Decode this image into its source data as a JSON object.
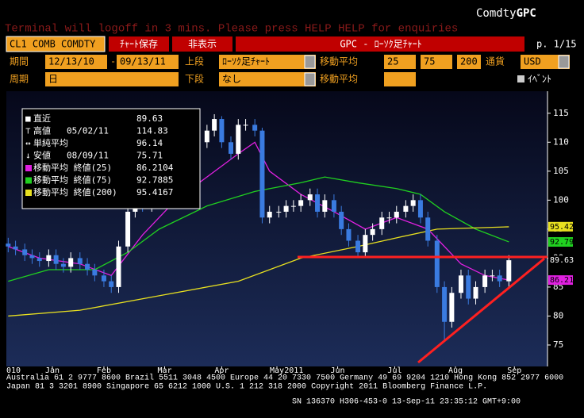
{
  "header": {
    "notice": "Terminal will logoff in 3 mins. Please press HELP HELP for enquiries",
    "brand": "Comdty",
    "ticker": "GPC"
  },
  "toolbar": {
    "security": "CL1 COMB COMDTY",
    "save": "ﾁｬｰﾄ保存",
    "hide": "非表示",
    "title": "GPC - ﾛｰｿｸ足ﾁｬｰﾄ",
    "page": "p. 1/15"
  },
  "form": {
    "period_label": "期間",
    "start": "12/13/10",
    "dash": "-",
    "end": "09/13/11",
    "upper_label": "上段",
    "upper": "ﾛｰｿｸ足ﾁｬｰﾄ",
    "ma_label": "移動平均",
    "ma1": "25",
    "ma2": "75",
    "ma3": "200",
    "currency_label": "通貨",
    "currency": "USD",
    "cycle_label": "周期",
    "cycle": "日",
    "lower_label": "下段",
    "lower": "なし",
    "ma_label2": "移動平均",
    "event": "ｲﾍﾞﾝﾄ"
  },
  "footer": {
    "line1": "Australia 61 2 9777 8600 Brazil 5511 3048 4500 Europe 44 20 7330 7500 Germany 49 69 9204 1210 Hong Kong 852 2977 6000",
    "line2": "Japan 81 3 3201 8900    Singapore 65 6212 1000    U.S. 1 212 318 2000      Copyright 2011 Bloomberg Finance L.P.",
    "line3": "SN 136370 H306-453-0 13-Sep-11 23:35:12 GMT+9:00"
  },
  "chart_data": {
    "type": "candlestick",
    "x": [
      0,
      4,
      9,
      13,
      17,
      22,
      26,
      30,
      34,
      39,
      43,
      47,
      52,
      56,
      60,
      65,
      69,
      73,
      78,
      82,
      86,
      91,
      95,
      99,
      103,
      108,
      112,
      116,
      121,
      125,
      129,
      134,
      138,
      142,
      147,
      151,
      155,
      159,
      164,
      168,
      172,
      177,
      181,
      185,
      190,
      194,
      198,
      203,
      207,
      211,
      216,
      220,
      224,
      228,
      233,
      237,
      241,
      246,
      250,
      254,
      259,
      263,
      267,
      272
    ],
    "open": [
      92.5,
      92,
      91.5,
      90.5,
      90,
      89.5,
      90.5,
      89,
      88.5,
      90,
      89,
      88,
      87,
      86,
      85,
      92,
      98,
      100,
      99,
      102,
      104,
      100,
      107,
      108,
      106,
      110,
      112,
      114,
      110,
      108,
      113,
      113,
      112,
      97,
      98,
      98,
      99,
      99,
      100,
      101,
      98,
      100,
      98,
      95,
      93,
      91,
      94,
      95,
      97,
      97,
      98,
      99,
      100,
      97,
      93,
      85,
      79,
      84,
      87,
      83,
      85,
      87,
      87,
      86
    ],
    "high": [
      93.5,
      93,
      92.5,
      91.5,
      91,
      91.5,
      91.5,
      90,
      91,
      91,
      90,
      89,
      88,
      87,
      93,
      99,
      101,
      101,
      103,
      105,
      105,
      108,
      109,
      109,
      111,
      113,
      114.83,
      114.5,
      111,
      114,
      114,
      114,
      112.5,
      99,
      99,
      100,
      100,
      101,
      102,
      102,
      101,
      101,
      99,
      96,
      94,
      95,
      96,
      98,
      98,
      99,
      100,
      101,
      101,
      98,
      94,
      86,
      85,
      88,
      88,
      86,
      88,
      88,
      88,
      90.5
    ],
    "low": [
      91,
      90.5,
      89.5,
      89,
      88.5,
      88.5,
      88,
      87.5,
      87.5,
      88,
      87,
      86,
      85,
      84,
      84,
      91,
      97,
      98,
      98,
      101,
      99,
      99,
      106,
      105,
      105,
      109,
      111,
      109,
      107,
      107,
      112,
      111,
      96,
      96,
      97,
      97,
      98,
      98,
      99,
      97,
      97,
      97,
      94,
      92,
      90,
      90,
      93,
      94,
      96,
      96,
      97,
      98,
      96,
      92,
      84,
      75.71,
      78,
      83,
      82,
      82,
      84,
      86,
      85,
      85
    ],
    "close": [
      92,
      91.5,
      90.5,
      90,
      89.5,
      90.5,
      89,
      88.5,
      90,
      89,
      88,
      87,
      86,
      85,
      92,
      98,
      100,
      99,
      102,
      104,
      100,
      107,
      108,
      106,
      110,
      112,
      114,
      110,
      108,
      113,
      113,
      112,
      97,
      98,
      98,
      99,
      99,
      100,
      101,
      98,
      100,
      98,
      95,
      93,
      91,
      94,
      95,
      97,
      97,
      98,
      99,
      100,
      97,
      93,
      85,
      79,
      84,
      87,
      83,
      85,
      87,
      87,
      86,
      89.63
    ],
    "up_color": "#ffffff",
    "down_color": "#3a7be0",
    "xlim": [
      -1,
      293
    ],
    "xticks": [
      {
        "value": 24,
        "label": "Jan"
      },
      {
        "value": 52,
        "label": "Feb"
      },
      {
        "value": 85,
        "label": "Mar"
      },
      {
        "value": 116,
        "label": "Apr"
      },
      {
        "value": 146,
        "label": "May"
      },
      {
        "value": 179,
        "label": "Jun"
      },
      {
        "value": 210,
        "label": "Jul"
      },
      {
        "value": 243,
        "label": "Aug"
      },
      {
        "value": 275,
        "label": "Sep"
      }
    ],
    "year_labels": [
      {
        "value": -1,
        "label": "010"
      },
      {
        "value": 150,
        "label": "2011"
      }
    ],
    "ylim": [
      71.3,
      118.8
    ],
    "yticks": [
      75,
      80,
      85,
      90,
      95,
      100,
      105,
      110,
      115
    ],
    "last_tag": 89.63,
    "legend_rows": [
      {
        "label": "直近",
        "value": 89.63
      },
      {
        "label": "高値",
        "date": "05/02/11",
        "value": 114.83
      },
      {
        "label": "単純平均",
        "value": 96.14
      },
      {
        "label": "安値",
        "date": "08/09/11",
        "value": 75.71
      }
    ],
    "series": [
      {
        "name": "移動平均 終値(25)",
        "color": "#e020e0",
        "last": 86.2104,
        "tag": 86.21,
        "x": [
          0,
          17,
          39,
          56,
          73,
          91,
          108,
          125,
          134,
          142,
          159,
          177,
          194,
          211,
          228,
          246,
          259,
          272
        ],
        "values": [
          92,
          90,
          89,
          87,
          94,
          100,
          104,
          108,
          110,
          105,
          101,
          98,
          95,
          97,
          95,
          89,
          87,
          86.2
        ]
      },
      {
        "name": "移動平均 終値(75)",
        "color": "#20d020",
        "last": 92.7885,
        "tag": 92.79,
        "x": [
          0,
          22,
          47,
          65,
          82,
          108,
          134,
          159,
          172,
          190,
          211,
          224,
          237,
          254,
          272
        ],
        "values": [
          86,
          88,
          88,
          91,
          95,
          99,
          101.5,
          103,
          104,
          103,
          102,
          101,
          98,
          95,
          92.8
        ]
      },
      {
        "name": "移動平均 終値(200)",
        "color": "#e8e020",
        "last": 95.4167,
        "tag": 95.42,
        "x": [
          0,
          39,
          82,
          125,
          159,
          190,
          211,
          233,
          272
        ],
        "values": [
          80,
          81,
          83.5,
          86,
          90,
          92,
          93.5,
          95,
          95.4
        ]
      }
    ]
  }
}
